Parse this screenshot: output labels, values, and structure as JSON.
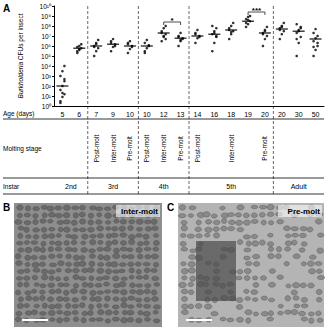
{
  "chart_data": {
    "type": "scatter",
    "panel_label": "A",
    "y_label": "Burkholderia CFUs per insect",
    "x_label": "Age (days)",
    "categories": [
      "5",
      "6",
      "7",
      "9",
      "10",
      "10",
      "12",
      "13",
      "14",
      "16",
      "18",
      "19",
      "20",
      "20",
      "30",
      "50"
    ],
    "values": [
      [
        3,
        8,
        15,
        40,
        100,
        300,
        1000,
        3000,
        10000,
        2,
        20,
        500
      ],
      [
        200000,
        400000,
        600000,
        800000,
        1000000,
        1500000,
        300000,
        500000
      ],
      [
        100000,
        300000,
        600000,
        1000000,
        2000000,
        4000000,
        800000,
        1500000
      ],
      [
        300000,
        800000,
        1500000,
        3000000,
        5000000,
        1000000,
        2000000
      ],
      [
        200000,
        500000,
        1000000,
        2000000,
        3000000,
        800000,
        1500000
      ],
      [
        200000,
        600000,
        1000000,
        2000000,
        4000000,
        1200000,
        300000
      ],
      [
        3000000,
        8000000,
        15000000,
        30000000,
        60000000,
        100000000,
        20000000,
        10000000,
        5000000
      ],
      [
        1000000,
        3000000,
        6000000,
        10000000,
        20000000,
        5000000,
        8000000,
        4000000
      ],
      [
        2000000,
        6000000,
        10000000,
        20000000,
        40000000,
        8000000,
        15000000
      ],
      [
        300000,
        2000000,
        8000000,
        15000000,
        30000000,
        60000000,
        100000000,
        20000000,
        10000000
      ],
      [
        5000000,
        15000000,
        30000000,
        60000000,
        100000000,
        200000000,
        40000000,
        25000000
      ],
      [
        80000000,
        150000000,
        300000000,
        500000000,
        800000000,
        1000000000,
        200000000,
        400000000
      ],
      [
        1000000,
        5000000,
        10000000,
        20000000,
        40000000,
        80000000,
        15000000,
        30000000
      ],
      [
        5000000,
        15000000,
        30000000,
        60000000,
        100000000,
        200000000,
        40000000,
        80000000
      ],
      [
        100000,
        2000000,
        8000000,
        20000000,
        40000000,
        80000000,
        150000000,
        30000000,
        60000000,
        5000000
      ],
      [
        100000,
        400000,
        1000000,
        3000000,
        6000000,
        10000000,
        20000000,
        50000000,
        2000000,
        800000
      ]
    ],
    "means": [
      100,
      600000,
      1000000,
      1500000,
      1000000,
      1000000,
      20000000,
      6000000,
      10000000,
      15000000,
      40000000,
      300000000,
      20000000,
      50000000,
      30000000,
      5000000
    ],
    "color": "#000000",
    "log": "y",
    "grid": false,
    "ylim": [
      1,
      10000000000
    ],
    "yticks": [
      {
        "value": 1,
        "label": "10⁰"
      },
      {
        "value": 10,
        "label": "10¹"
      },
      {
        "value": 100,
        "label": "10²"
      },
      {
        "value": 1000,
        "label": "10³"
      },
      {
        "value": 10000,
        "label": "10⁴"
      },
      {
        "value": 100000,
        "label": "10⁵"
      },
      {
        "value": 1000000,
        "label": "10⁶"
      },
      {
        "value": 10000000,
        "label": "10⁷"
      },
      {
        "value": 100000000,
        "label": "10⁸"
      },
      {
        "value": 1000000000,
        "label": "10⁹"
      },
      {
        "value": 10000000000,
        "label": "10¹⁰"
      }
    ],
    "significance": [
      {
        "between": [
          6,
          7
        ],
        "label": "*"
      },
      {
        "between": [
          11,
          12
        ],
        "label": "***"
      }
    ],
    "molting_row_label": "Molting stage",
    "molting_stages": [
      {
        "label": "Post-molt",
        "from": 2,
        "to": 2
      },
      {
        "label": "Inter-molt",
        "from": 3,
        "to": 3
      },
      {
        "label": "Pre-molt",
        "from": 4,
        "to": 4
      },
      {
        "label": "Post-molt",
        "from": 5,
        "to": 5
      },
      {
        "label": "Inter-molt",
        "from": 6,
        "to": 6
      },
      {
        "label": "Pre-molt",
        "from": 7,
        "to": 7
      },
      {
        "label": "Post-molt",
        "from": 8,
        "to": 8
      },
      {
        "label": "Inter-molt",
        "from": 9,
        "to": 11
      },
      {
        "label": "Pre-molt",
        "from": 12,
        "to": 12
      }
    ],
    "instar_row_label": "Instar",
    "instars": [
      {
        "label": "2nd",
        "from": 0,
        "to": 1
      },
      {
        "label": "3rd",
        "from": 2,
        "to": 4
      },
      {
        "label": "4th",
        "from": 5,
        "to": 7
      },
      {
        "label": "5th",
        "from": 8,
        "to": 12
      },
      {
        "label": "Adult",
        "from": 13,
        "to": 15
      }
    ]
  },
  "images": [
    {
      "panel_label": "B",
      "caption": "Inter-molt"
    },
    {
      "panel_label": "C",
      "caption": "Pre-molt"
    }
  ]
}
